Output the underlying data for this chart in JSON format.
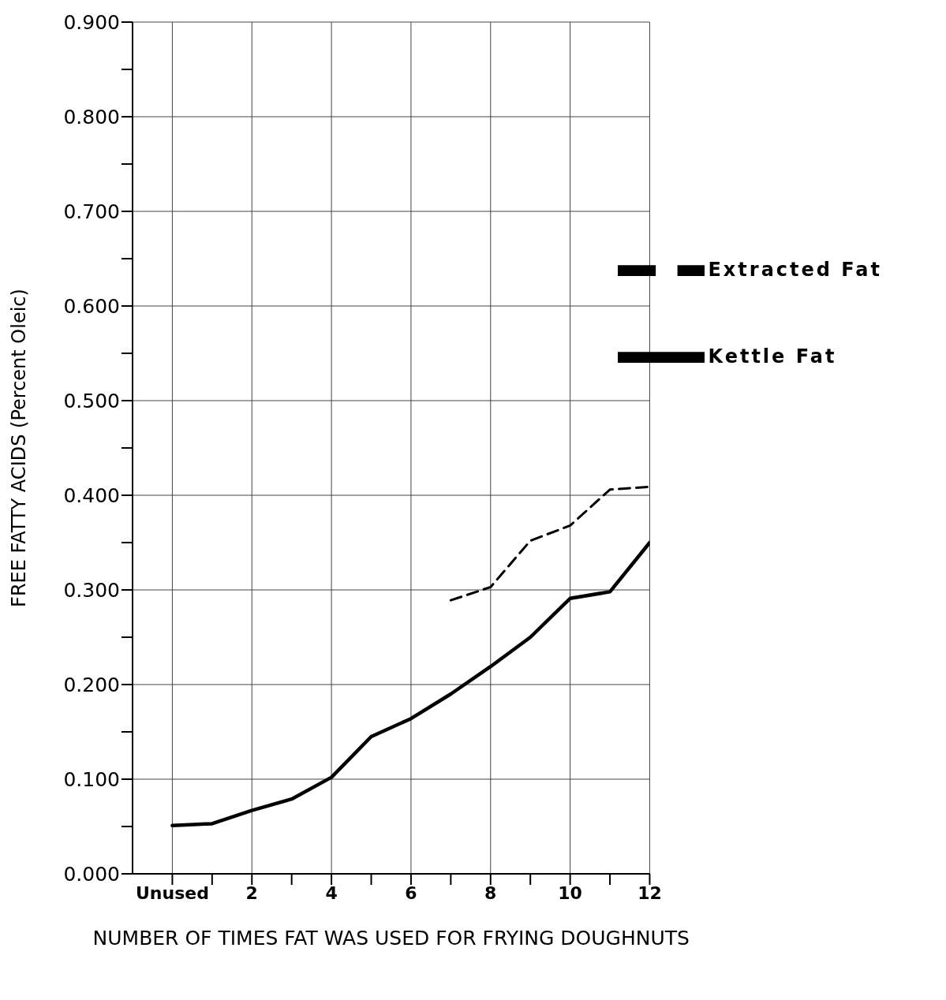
{
  "chart_data": {
    "type": "line",
    "xlabel": "NUMBER OF TIMES FAT WAS USED FOR FRYING DOUGHNUTS",
    "ylabel": "FREE FATTY ACIDS (Percent Oleic)",
    "x": [
      0,
      1,
      2,
      3,
      4,
      5,
      6,
      7,
      8,
      9,
      10,
      11,
      12
    ],
    "series": [
      {
        "name": "Kettle Fat",
        "color": "#000000",
        "line_style": "solid",
        "values": [
          0.051,
          0.053,
          0.067,
          0.079,
          0.102,
          0.145,
          0.164,
          0.19,
          0.219,
          0.25,
          0.291,
          0.298,
          0.35
        ]
      },
      {
        "name": "Extracted Fat",
        "color": "#000000",
        "line_style": "dashed",
        "values": [
          null,
          null,
          null,
          null,
          null,
          null,
          null,
          0.289,
          0.303,
          0.352,
          0.368,
          0.406,
          0.409
        ]
      }
    ],
    "xlim": [
      -1,
      12
    ],
    "xticks": [
      {
        "value": 0,
        "label": "Unused"
      },
      {
        "value": 1,
        "label": null
      },
      2,
      {
        "value": 3,
        "label": null
      },
      4,
      {
        "value": 5,
        "label": null
      },
      6,
      {
        "value": 7,
        "label": null
      },
      8,
      {
        "value": 9,
        "label": null
      },
      10,
      {
        "value": 11,
        "label": null
      },
      12
    ],
    "ylim": [
      0,
      0.9
    ],
    "yticks": [
      {
        "value": 0,
        "label": "0.000"
      },
      {
        "value": 0.05,
        "label": null
      },
      {
        "value": 0.1,
        "label": "0.100"
      },
      {
        "value": 0.15,
        "label": null
      },
      {
        "value": 0.2,
        "label": "0.200"
      },
      {
        "value": 0.25,
        "label": null
      },
      {
        "value": 0.3,
        "label": "0.300"
      },
      {
        "value": 0.35,
        "label": null
      },
      {
        "value": 0.4,
        "label": "0.400"
      },
      {
        "value": 0.45,
        "label": null
      },
      {
        "value": 0.5,
        "label": "0.500"
      },
      {
        "value": 0.55,
        "label": null
      },
      {
        "value": 0.6,
        "label": "0.600"
      },
      {
        "value": 0.65,
        "label": null
      },
      {
        "value": 0.7,
        "label": "0.700"
      },
      {
        "value": 0.75,
        "label": null
      },
      {
        "value": 0.8,
        "label": "0.800"
      },
      {
        "value": 0.85,
        "label": null
      },
      {
        "value": 0.9,
        "label": "0.900"
      }
    ],
    "grid": true,
    "legend": "top right",
    "marker": "none"
  }
}
